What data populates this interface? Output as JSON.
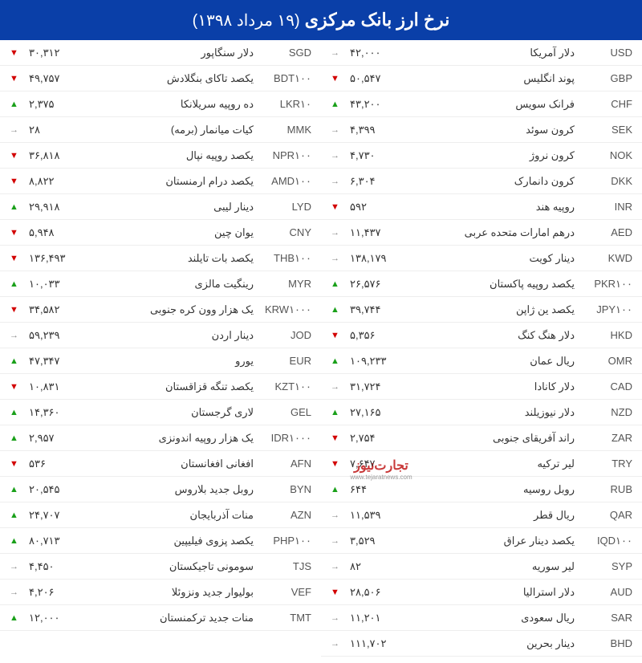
{
  "header": {
    "title": "نرخ ارز بانک مرکزی",
    "date": "(۱۹ مرداد ۱۳۹۸)"
  },
  "arrows": {
    "up": "▲",
    "down": "▼",
    "same": "→"
  },
  "colors": {
    "header_bg": "#0a3fa8",
    "up": "#1aa01a",
    "down": "#d20000",
    "same": "#888888",
    "border": "#eeeeee"
  },
  "watermark": {
    "title": "تجارت‌نیوز",
    "sub": "www.tejaratnews.com"
  },
  "right": [
    {
      "code": "USD",
      "name": "دلار آمریکا",
      "val": "۴۲,۰۰۰",
      "dir": "same"
    },
    {
      "code": "GBP",
      "name": "پوند انگلیس",
      "val": "۵۰,۵۴۷",
      "dir": "down"
    },
    {
      "code": "CHF",
      "name": "فرانک سویس",
      "val": "۴۳,۲۰۰",
      "dir": "up"
    },
    {
      "code": "SEK",
      "name": "کرون سوئد",
      "val": "۴,۳۹۹",
      "dir": "same"
    },
    {
      "code": "NOK",
      "name": "کرون نروژ",
      "val": "۴,۷۳۰",
      "dir": "same"
    },
    {
      "code": "DKK",
      "name": "کرون دانمارک",
      "val": "۶,۳۰۴",
      "dir": "same"
    },
    {
      "code": "INR",
      "name": "روپیه هند",
      "val": "۵۹۲",
      "dir": "down"
    },
    {
      "code": "AED",
      "name": "درهم امارات متحده عربی",
      "val": "۱۱,۴۳۷",
      "dir": "same"
    },
    {
      "code": "KWD",
      "name": "دینار کویت",
      "val": "۱۳۸,۱۷۹",
      "dir": "same"
    },
    {
      "code": "PKR۱۰۰",
      "name": "یکصد روپیه پاکستان",
      "val": "۲۶,۵۷۶",
      "dir": "up"
    },
    {
      "code": "JPY۱۰۰",
      "name": "یکصد ین ژاپن",
      "val": "۳۹,۷۴۴",
      "dir": "up"
    },
    {
      "code": "HKD",
      "name": "دلار هنگ کنگ",
      "val": "۵,۳۵۶",
      "dir": "down"
    },
    {
      "code": "OMR",
      "name": "ریال عمان",
      "val": "۱۰۹,۲۳۳",
      "dir": "up"
    },
    {
      "code": "CAD",
      "name": "دلار کانادا",
      "val": "۳۱,۷۲۴",
      "dir": "same"
    },
    {
      "code": "NZD",
      "name": "دلار نیوزیلند",
      "val": "۲۷,۱۶۵",
      "dir": "up"
    },
    {
      "code": "ZAR",
      "name": "راند آفریقای جنوبی",
      "val": "۲,۷۵۴",
      "dir": "down"
    },
    {
      "code": "TRY",
      "name": "لیر ترکیه",
      "val": "۷,۶۴۷",
      "dir": "down"
    },
    {
      "code": "RUB",
      "name": "روبل روسیه",
      "val": "۶۴۴",
      "dir": "up"
    },
    {
      "code": "QAR",
      "name": "ریال قطر",
      "val": "۱۱,۵۳۹",
      "dir": "same"
    },
    {
      "code": "IQD۱۰۰",
      "name": "یکصد دینار عراق",
      "val": "۳,۵۲۹",
      "dir": "same"
    },
    {
      "code": "SYP",
      "name": "لیر سوریه",
      "val": "۸۲",
      "dir": "same"
    },
    {
      "code": "AUD",
      "name": "دلار استرالیا",
      "val": "۲۸,۵۰۶",
      "dir": "down"
    },
    {
      "code": "SAR",
      "name": "ریال سعودی",
      "val": "۱۱,۲۰۱",
      "dir": "same"
    },
    {
      "code": "BHD",
      "name": "دینار بحرین",
      "val": "۱۱۱,۷۰۲",
      "dir": "same"
    }
  ],
  "left": [
    {
      "code": "SGD",
      "name": "دلار سنگاپور",
      "val": "۳۰,۳۱۲",
      "dir": "down"
    },
    {
      "code": "BDT۱۰۰",
      "name": "یکصد تاکای بنگلادش",
      "val": "۴۹,۷۵۷",
      "dir": "down"
    },
    {
      "code": "LKR۱۰",
      "name": "ده روپیه سریلانکا",
      "val": "۲,۳۷۵",
      "dir": "up"
    },
    {
      "code": "MMK",
      "name": "کیات میانمار (برمه)",
      "val": "۲۸",
      "dir": "same"
    },
    {
      "code": "NPR۱۰۰",
      "name": "یکصد روپیه نپال",
      "val": "۳۶,۸۱۸",
      "dir": "down"
    },
    {
      "code": "AMD۱۰۰",
      "name": "یکصد درام ارمنستان",
      "val": "۸,۸۲۲",
      "dir": "down"
    },
    {
      "code": "LYD",
      "name": "دینار لیبی",
      "val": "۲۹,۹۱۸",
      "dir": "up"
    },
    {
      "code": "CNY",
      "name": "یوان چین",
      "val": "۵,۹۴۸",
      "dir": "down"
    },
    {
      "code": "THB۱۰۰",
      "name": "یکصد بات تایلند",
      "val": "۱۳۶,۴۹۳",
      "dir": "down"
    },
    {
      "code": "MYR",
      "name": "رینگیت مالزی",
      "val": "۱۰,۰۳۳",
      "dir": "up"
    },
    {
      "code": "KRW۱۰۰۰",
      "name": "یک هزار وون کره جنوبی",
      "val": "۳۴,۵۸۲",
      "dir": "down"
    },
    {
      "code": "JOD",
      "name": "دینار اردن",
      "val": "۵۹,۲۳۹",
      "dir": "same"
    },
    {
      "code": "EUR",
      "name": "یورو",
      "val": "۴۷,۳۴۷",
      "dir": "up"
    },
    {
      "code": "KZT۱۰۰",
      "name": "یکصد تنگه قزاقستان",
      "val": "۱۰,۸۳۱",
      "dir": "down"
    },
    {
      "code": "GEL",
      "name": "لاری گرجستان",
      "val": "۱۴,۳۶۰",
      "dir": "up"
    },
    {
      "code": "IDR۱۰۰۰",
      "name": "یک هزار روپیه اندونزی",
      "val": "۲,۹۵۷",
      "dir": "up"
    },
    {
      "code": "AFN",
      "name": "افغانی افغانستان",
      "val": "۵۳۶",
      "dir": "down"
    },
    {
      "code": "BYN",
      "name": "روبل جدید بلاروس",
      "val": "۲۰,۵۴۵",
      "dir": "up"
    },
    {
      "code": "AZN",
      "name": "منات آذربایجان",
      "val": "۲۴,۷۰۷",
      "dir": "up"
    },
    {
      "code": "PHP۱۰۰",
      "name": "یکصد پزوی فیلیپین",
      "val": "۸۰,۷۱۳",
      "dir": "up"
    },
    {
      "code": "TJS",
      "name": "سومونی تاجیکستان",
      "val": "۴,۴۵۰",
      "dir": "same"
    },
    {
      "code": "VEF",
      "name": "بولیوار جدید ونزوئلا",
      "val": "۴,۲۰۶",
      "dir": "same"
    },
    {
      "code": "TMT",
      "name": "منات جدید ترکمنستان",
      "val": "۱۲,۰۰۰",
      "dir": "up"
    }
  ]
}
